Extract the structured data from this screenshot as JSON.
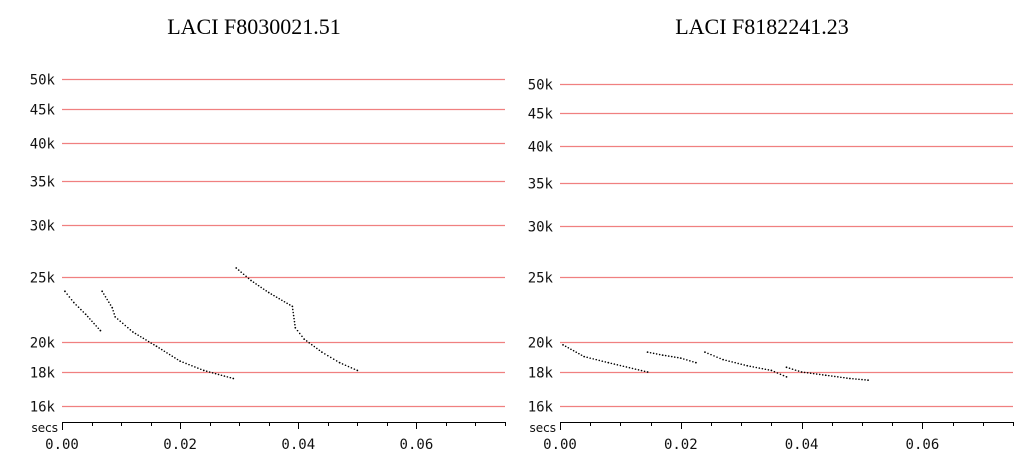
{
  "chart_data": [
    {
      "type": "scatter",
      "title": "LACI F8030021.51",
      "xlabel": "secs",
      "ylabel": "",
      "y_scale": "log",
      "xlim": [
        0,
        0.075
      ],
      "ylim": [
        15000,
        52000
      ],
      "x_ticks": [
        0.0,
        0.02,
        0.04,
        0.06
      ],
      "x_tick_labels": [
        "0.00",
        "0.02",
        "0.04",
        "0.06"
      ],
      "y_gridlines": [
        16000,
        18000,
        20000,
        25000,
        30000,
        35000,
        40000,
        45000,
        50000
      ],
      "y_tick_labels": [
        "16k",
        "18k",
        "20k",
        "25k",
        "30k",
        "35k",
        "40k",
        "45k",
        "50k"
      ],
      "grid": true,
      "grid_color": "#f08080",
      "point_color": "#000000",
      "series": [
        {
          "values": [
            [
              0.0005,
              23800
            ],
            [
              0.002,
              22900
            ],
            [
              0.004,
              22000
            ],
            [
              0.0065,
              20800
            ]
          ]
        },
        {
          "values": [
            [
              0.0068,
              23800
            ],
            [
              0.0085,
              22500
            ],
            [
              0.009,
              21800
            ],
            [
              0.012,
              20700
            ],
            [
              0.016,
              19700
            ],
            [
              0.02,
              18700
            ],
            [
              0.024,
              18100
            ],
            [
              0.029,
              17600
            ]
          ]
        },
        {
          "values": [
            [
              0.0295,
              25800
            ],
            [
              0.032,
              24700
            ],
            [
              0.035,
              23700
            ],
            [
              0.039,
              22600
            ],
            [
              0.0395,
              21000
            ],
            [
              0.041,
              20200
            ],
            [
              0.044,
              19300
            ],
            [
              0.047,
              18600
            ],
            [
              0.05,
              18100
            ]
          ]
        }
      ]
    },
    {
      "type": "scatter",
      "title": "LACI F8182241.23",
      "xlabel": "secs",
      "ylabel": "",
      "y_scale": "log",
      "xlim": [
        0,
        0.075
      ],
      "ylim": [
        15000,
        52000
      ],
      "x_ticks": [
        0.0,
        0.02,
        0.04,
        0.06
      ],
      "x_tick_labels": [
        "0.00",
        "0.02",
        "0.04",
        "0.06"
      ],
      "y_gridlines": [
        16000,
        18000,
        20000,
        25000,
        30000,
        35000,
        40000,
        45000,
        50000
      ],
      "y_tick_labels": [
        "16k",
        "18k",
        "20k",
        "25k",
        "30k",
        "35k",
        "40k",
        "45k",
        "50k"
      ],
      "grid": true,
      "grid_color": "#f08080",
      "point_color": "#000000",
      "series": [
        {
          "values": [
            [
              0.0005,
              19800
            ],
            [
              0.004,
              19000
            ],
            [
              0.008,
              18600
            ],
            [
              0.0145,
              18000
            ]
          ]
        },
        {
          "values": [
            [
              0.0145,
              19300
            ],
            [
              0.017,
              19100
            ],
            [
              0.02,
              18900
            ],
            [
              0.0225,
              18600
            ]
          ]
        },
        {
          "values": [
            [
              0.024,
              19300
            ],
            [
              0.027,
              18800
            ],
            [
              0.031,
              18400
            ],
            [
              0.035,
              18100
            ],
            [
              0.0375,
              17700
            ]
          ]
        },
        {
          "values": [
            [
              0.0375,
              18300
            ],
            [
              0.04,
              18000
            ],
            [
              0.044,
              17800
            ],
            [
              0.048,
              17600
            ],
            [
              0.051,
              17500
            ]
          ]
        }
      ]
    }
  ]
}
